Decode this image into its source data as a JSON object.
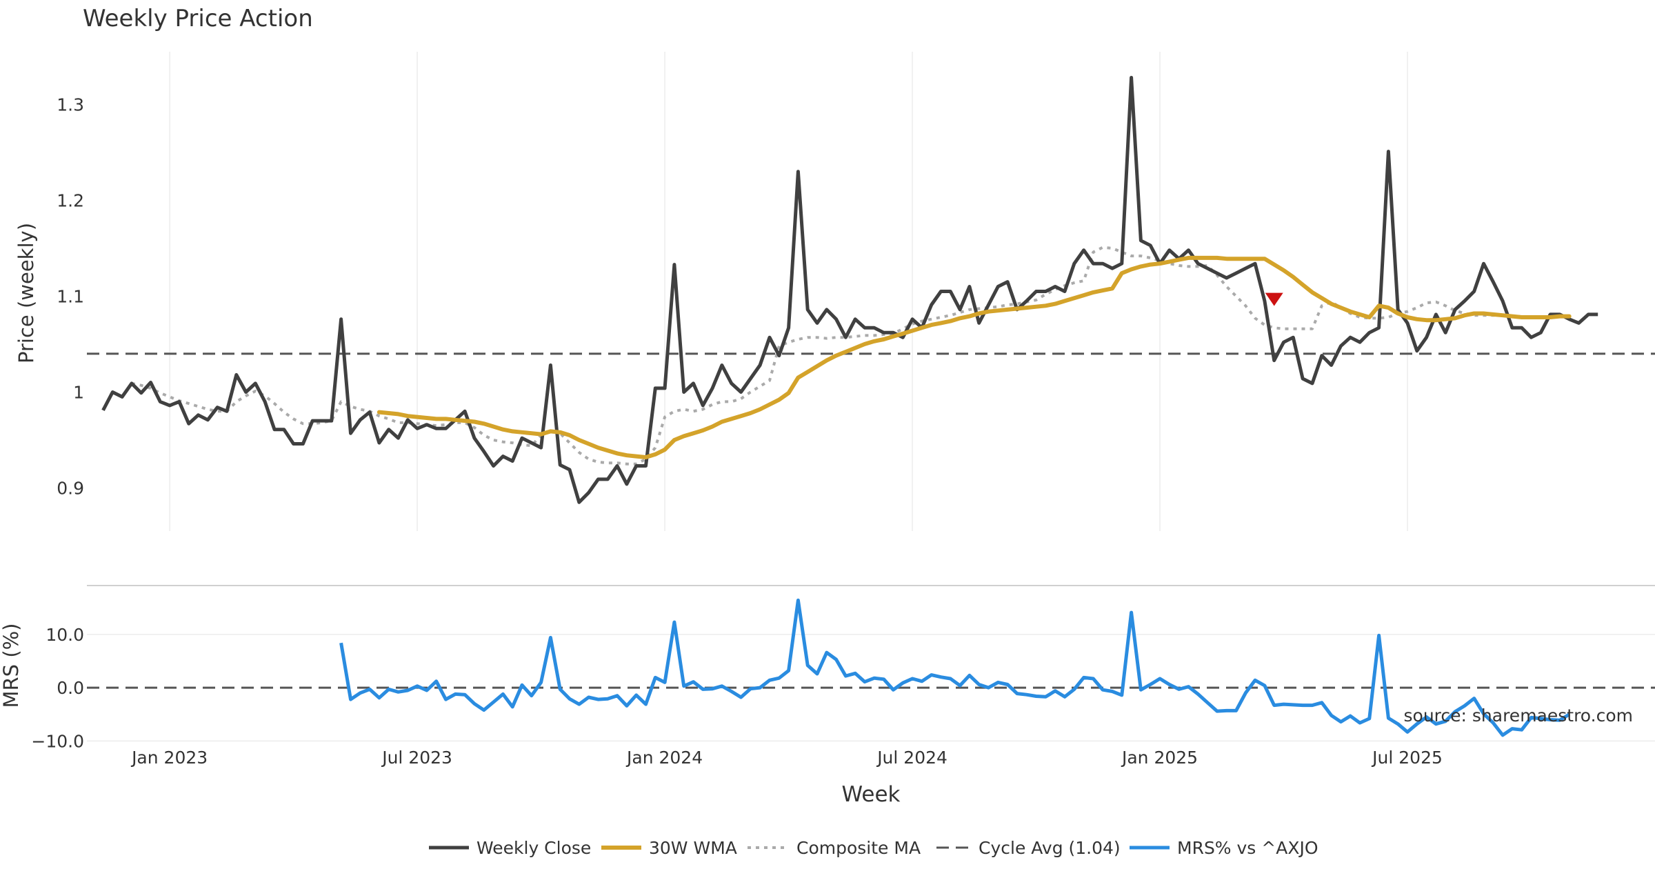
{
  "colors": {
    "weekly_close": "#404040",
    "wma": "#d4a32a",
    "composite": "#aaaaaa",
    "cycle": "#555555",
    "mrs": "#2a8ce0",
    "marker": "#cc1111",
    "grid": "#ececec",
    "watermark": "#9a9a9a"
  },
  "chart_data": {
    "type": "line",
    "title": "Weekly Price Action",
    "xlabel": "Week",
    "source_text": "source: sharemaestro.com",
    "x_tick_labels": [
      "Jan 2023",
      "Jul 2023",
      "Jan 2024",
      "Jul 2024",
      "Jan 2025",
      "Jul 2025"
    ],
    "x_tick_weeks": [
      7,
      33,
      59,
      85,
      111,
      137
    ],
    "x_range_weeks": [
      -1.7,
      163
    ],
    "price_panel": {
      "ylabel": "Price (weekly)",
      "ylim": [
        0.855,
        1.355
      ],
      "y_ticks": [
        0.9,
        1.0,
        1.1,
        1.2,
        1.3
      ],
      "y_tick_labels": [
        "0.9",
        "1",
        "1.1",
        "1.2",
        "1.3"
      ],
      "cycle_avg": 1.04,
      "series": [
        {
          "name": "Weekly Close",
          "start_week": 0,
          "values": [
            0.981,
            1.0,
            0.995,
            1.009,
            0.999,
            1.01,
            0.99,
            0.986,
            0.99,
            0.967,
            0.976,
            0.971,
            0.984,
            0.98,
            1.018,
            1.0,
            1.009,
            0.99,
            0.961,
            0.961,
            0.946,
            0.946,
            0.97,
            0.97,
            0.97,
            1.076,
            0.957,
            0.971,
            0.979,
            0.947,
            0.961,
            0.952,
            0.971,
            0.962,
            0.966,
            0.962,
            0.962,
            0.971,
            0.98,
            0.952,
            0.938,
            0.923,
            0.933,
            0.928,
            0.952,
            0.947,
            0.942,
            1.028,
            0.924,
            0.919,
            0.885,
            0.895,
            0.909,
            0.909,
            0.923,
            0.904,
            0.923,
            0.923,
            1.004,
            1.004,
            1.133,
            1.0,
            1.009,
            0.986,
            1.004,
            1.028,
            1.009,
            1.0,
            1.014,
            1.028,
            1.057,
            1.038,
            1.067,
            1.23,
            1.086,
            1.072,
            1.086,
            1.076,
            1.057,
            1.076,
            1.067,
            1.067,
            1.062,
            1.062,
            1.057,
            1.076,
            1.067,
            1.091,
            1.105,
            1.105,
            1.086,
            1.11,
            1.072,
            1.091,
            1.11,
            1.115,
            1.086,
            1.095,
            1.105,
            1.105,
            1.11,
            1.105,
            1.134,
            1.148,
            1.134,
            1.134,
            1.129,
            1.134,
            1.328,
            1.158,
            1.153,
            1.134,
            1.148,
            1.139,
            1.148,
            1.134,
            1.129,
            1.124,
            1.119,
            1.124,
            1.129,
            1.134,
            1.095,
            1.033,
            1.052,
            1.057,
            1.014,
            1.009,
            1.038,
            1.028,
            1.048,
            1.057,
            1.052,
            1.062,
            1.067,
            1.251,
            1.086,
            1.072,
            1.043,
            1.057,
            1.081,
            1.062,
            1.086,
            1.095,
            1.105,
            1.134,
            1.115,
            1.095,
            1.067,
            1.067,
            1.057,
            1.062,
            1.081,
            1.081,
            1.076,
            1.072,
            1.081,
            1.081
          ]
        },
        {
          "name": "Composite MA",
          "start_week": 3,
          "values": [
            1.009,
            1.007,
            1.004,
            0.999,
            0.995,
            0.991,
            0.988,
            0.985,
            0.982,
            0.98,
            0.98,
            0.99,
            0.996,
            1.001,
            0.996,
            0.988,
            0.979,
            0.972,
            0.967,
            0.967,
            0.968,
            0.97,
            0.99,
            0.985,
            0.982,
            0.98,
            0.975,
            0.972,
            0.968,
            0.968,
            0.967,
            0.966,
            0.965,
            0.966,
            0.968,
            0.968,
            0.963,
            0.955,
            0.95,
            0.948,
            0.947,
            0.945,
            0.944,
            0.955,
            0.96,
            0.957,
            0.947,
            0.937,
            0.93,
            0.927,
            0.926,
            0.926,
            0.925,
            0.925,
            0.93,
            0.942,
            0.974,
            0.98,
            0.982,
            0.98,
            0.982,
            0.987,
            0.99,
            0.99,
            0.993,
            1.0,
            1.006,
            1.012,
            1.048,
            1.052,
            1.055,
            1.057,
            1.057,
            1.056,
            1.057,
            1.057,
            1.058,
            1.059,
            1.059,
            1.06,
            1.061,
            1.066,
            1.071,
            1.074,
            1.076,
            1.078,
            1.08,
            1.083,
            1.086,
            1.087,
            1.088,
            1.089,
            1.091,
            1.092,
            1.094,
            1.096,
            1.102,
            1.107,
            1.111,
            1.114,
            1.116,
            1.146,
            1.151,
            1.15,
            1.146,
            1.142,
            1.142,
            1.14,
            1.137,
            1.134,
            1.132,
            1.131,
            1.131,
            1.132,
            1.122,
            1.11,
            1.1,
            1.09,
            1.077,
            1.07,
            1.067,
            1.066,
            1.066,
            1.066,
            1.066,
            1.09,
            1.094,
            1.088,
            1.082,
            1.078,
            1.077,
            1.077,
            1.078,
            1.082,
            1.084,
            1.088,
            1.093,
            1.094,
            1.09,
            1.085,
            1.082,
            1.08,
            1.08,
            1.08,
            1.08,
            1.079,
            1.079
          ]
        },
        {
          "name": "30W WMA",
          "start_week": 29,
          "values": [
            0.979,
            0.978,
            0.977,
            0.975,
            0.974,
            0.973,
            0.972,
            0.972,
            0.971,
            0.97,
            0.969,
            0.967,
            0.964,
            0.961,
            0.959,
            0.958,
            0.957,
            0.956,
            0.959,
            0.958,
            0.955,
            0.95,
            0.946,
            0.942,
            0.939,
            0.936,
            0.934,
            0.933,
            0.932,
            0.935,
            0.94,
            0.95,
            0.954,
            0.957,
            0.96,
            0.964,
            0.969,
            0.972,
            0.975,
            0.978,
            0.982,
            0.987,
            0.992,
            0.999,
            1.015,
            1.021,
            1.027,
            1.033,
            1.038,
            1.042,
            1.046,
            1.05,
            1.053,
            1.055,
            1.058,
            1.061,
            1.064,
            1.067,
            1.07,
            1.072,
            1.074,
            1.077,
            1.079,
            1.082,
            1.084,
            1.085,
            1.086,
            1.087,
            1.088,
            1.089,
            1.09,
            1.092,
            1.095,
            1.098,
            1.101,
            1.104,
            1.106,
            1.108,
            1.124,
            1.128,
            1.131,
            1.133,
            1.134,
            1.136,
            1.138,
            1.14,
            1.14,
            1.14,
            1.14,
            1.139,
            1.139,
            1.139,
            1.139,
            1.139,
            1.133,
            1.127,
            1.12,
            1.112,
            1.104,
            1.098,
            1.092,
            1.088,
            1.084,
            1.081,
            1.078,
            1.09,
            1.088,
            1.082,
            1.078,
            1.076,
            1.075,
            1.075,
            1.076,
            1.077,
            1.08,
            1.082,
            1.082,
            1.081,
            1.08,
            1.079,
            1.078,
            1.078,
            1.078,
            1.078,
            1.079,
            1.079
          ]
        }
      ],
      "annotations": [
        {
          "type": "sell-signal-marker",
          "week": 123,
          "value": 1.097
        }
      ]
    },
    "mrs_panel": {
      "ylabel": "MRS (%)",
      "ylim": [
        -11.5,
        18
      ],
      "y_ticks": [
        10,
        0,
        -10
      ],
      "y_tick_labels": [
        "10.0",
        "0.0",
        "−10.0"
      ],
      "reference_line": 0,
      "series": [
        {
          "name": "MRS% vs ^AXJO",
          "start_week": 25,
          "values": [
            8.4,
            -2.2,
            -1.0,
            -0.3,
            -1.9,
            -0.3,
            -0.8,
            -0.5,
            0.3,
            -0.5,
            1.2,
            -2.2,
            -1.2,
            -1.3,
            -3.0,
            -4.2,
            -2.7,
            -1.2,
            -3.6,
            0.5,
            -1.5,
            1.0,
            9.4,
            -0.3,
            -2.1,
            -3.1,
            -1.8,
            -2.2,
            -2.1,
            -1.5,
            -3.4,
            -1.4,
            -3.1,
            1.9,
            1.0,
            12.3,
            0.3,
            1.1,
            -0.3,
            -0.2,
            0.3,
            -0.7,
            -1.8,
            -0.2,
            0.0,
            1.4,
            1.8,
            3.2,
            16.4,
            4.2,
            2.6,
            6.6,
            5.3,
            2.2,
            2.7,
            1.1,
            1.8,
            1.6,
            -0.4,
            0.9,
            1.7,
            1.2,
            2.4,
            2.0,
            1.7,
            0.4,
            2.3,
            0.6,
            0.0,
            1.0,
            0.6,
            -1.1,
            -1.3,
            -1.6,
            -1.7,
            -0.6,
            -1.7,
            -0.3,
            1.9,
            1.7,
            -0.4,
            -0.7,
            -1.4,
            14.1,
            -0.4,
            0.6,
            1.7,
            0.6,
            -0.3,
            0.2,
            -1.2,
            -2.8,
            -4.4,
            -4.3,
            -4.3,
            -1.0,
            1.4,
            0.4,
            -3.3,
            -3.1,
            -3.2,
            -3.3,
            -3.3,
            -2.8,
            -5.2,
            -6.4,
            -5.3,
            -6.6,
            -5.8,
            9.8,
            -5.7,
            -6.8,
            -8.3,
            -6.8,
            -5.5,
            -6.8,
            -6.3,
            -4.5,
            -3.4,
            -2.0,
            -4.9,
            -6.6,
            -8.9,
            -7.7,
            -7.9,
            -5.6,
            -5.8,
            -6.0,
            -6.1,
            -5.0
          ]
        }
      ]
    },
    "legend": {
      "placement": "bottom-center",
      "entries": [
        "Weekly Close",
        "30W WMA",
        "Composite MA",
        "Cycle Avg (1.04)",
        "MRS% vs ^AXJO"
      ]
    }
  }
}
